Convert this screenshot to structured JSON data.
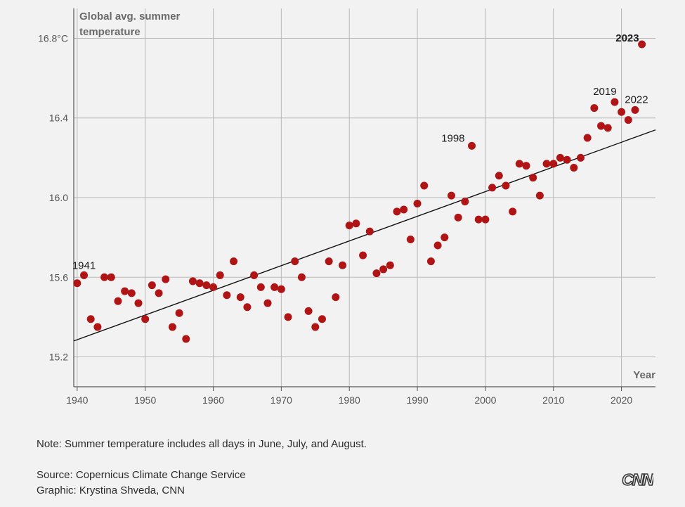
{
  "chart_data": {
    "type": "scatter",
    "title": "Global avg. summer temperature",
    "title_lines": [
      "Global avg. summer",
      "temperature"
    ],
    "xlabel": "Year",
    "ylabel": "",
    "unit_suffix": "°C",
    "xlim": [
      1939.5,
      2025
    ],
    "ylim": [
      15.05,
      16.95
    ],
    "x_ticks": [
      1940,
      1950,
      1960,
      1970,
      1980,
      1990,
      2000,
      2010,
      2020
    ],
    "y_ticks": [
      15.2,
      15.6,
      16.0,
      16.4,
      16.8
    ],
    "y_tick_labels": [
      "15.2",
      "15.6",
      "16.0",
      "16.4",
      "16.8°C"
    ],
    "grid": true,
    "point_color": "#b01414",
    "trend_line": {
      "x": [
        1939.5,
        2025
      ],
      "y": [
        15.28,
        16.34
      ]
    },
    "annotations": [
      {
        "label": "1941",
        "x": 1941,
        "bold": false
      },
      {
        "label": "1998",
        "x": 1998,
        "bold": false
      },
      {
        "label": "2019",
        "x": 2019,
        "bold": false
      },
      {
        "label": "2022",
        "x": 2022,
        "bold": false
      },
      {
        "label": "2023",
        "x": 2023,
        "bold": true
      }
    ],
    "series": [
      {
        "points": [
          [
            1940,
            15.57
          ],
          [
            1941,
            15.61
          ],
          [
            1942,
            15.39
          ],
          [
            1943,
            15.35
          ],
          [
            1944,
            15.6
          ],
          [
            1945,
            15.6
          ],
          [
            1946,
            15.48
          ],
          [
            1947,
            15.53
          ],
          [
            1948,
            15.52
          ],
          [
            1949,
            15.47
          ],
          [
            1950,
            15.39
          ],
          [
            1951,
            15.56
          ],
          [
            1952,
            15.52
          ],
          [
            1953,
            15.59
          ],
          [
            1954,
            15.35
          ],
          [
            1955,
            15.42
          ],
          [
            1956,
            15.29
          ],
          [
            1957,
            15.58
          ],
          [
            1958,
            15.57
          ],
          [
            1959,
            15.56
          ],
          [
            1960,
            15.55
          ],
          [
            1961,
            15.61
          ],
          [
            1962,
            15.51
          ],
          [
            1963,
            15.68
          ],
          [
            1964,
            15.5
          ],
          [
            1965,
            15.45
          ],
          [
            1966,
            15.61
          ],
          [
            1967,
            15.55
          ],
          [
            1968,
            15.47
          ],
          [
            1969,
            15.55
          ],
          [
            1970,
            15.54
          ],
          [
            1971,
            15.4
          ],
          [
            1972,
            15.68
          ],
          [
            1973,
            15.6
          ],
          [
            1974,
            15.43
          ],
          [
            1975,
            15.35
          ],
          [
            1976,
            15.39
          ],
          [
            1977,
            15.68
          ],
          [
            1978,
            15.5
          ],
          [
            1979,
            15.66
          ],
          [
            1980,
            15.86
          ],
          [
            1981,
            15.87
          ],
          [
            1982,
            15.71
          ],
          [
            1983,
            15.83
          ],
          [
            1984,
            15.62
          ],
          [
            1985,
            15.64
          ],
          [
            1986,
            15.66
          ],
          [
            1987,
            15.93
          ],
          [
            1988,
            15.94
          ],
          [
            1989,
            15.79
          ],
          [
            1990,
            15.97
          ],
          [
            1991,
            16.06
          ],
          [
            1992,
            15.68
          ],
          [
            1993,
            15.76
          ],
          [
            1994,
            15.8
          ],
          [
            1995,
            16.01
          ],
          [
            1996,
            15.9
          ],
          [
            1997,
            15.98
          ],
          [
            1998,
            16.26
          ],
          [
            1999,
            15.89
          ],
          [
            2000,
            15.89
          ],
          [
            2001,
            16.05
          ],
          [
            2002,
            16.11
          ],
          [
            2003,
            16.06
          ],
          [
            2004,
            15.93
          ],
          [
            2005,
            16.17
          ],
          [
            2006,
            16.16
          ],
          [
            2007,
            16.1
          ],
          [
            2008,
            16.01
          ],
          [
            2009,
            16.17
          ],
          [
            2010,
            16.17
          ],
          [
            2011,
            16.2
          ],
          [
            2012,
            16.19
          ],
          [
            2013,
            16.15
          ],
          [
            2014,
            16.2
          ],
          [
            2015,
            16.3
          ],
          [
            2016,
            16.45
          ],
          [
            2017,
            16.36
          ],
          [
            2018,
            16.35
          ],
          [
            2019,
            16.48
          ],
          [
            2020,
            16.43
          ],
          [
            2021,
            16.39
          ],
          [
            2022,
            16.44
          ],
          [
            2023,
            16.77
          ]
        ]
      }
    ]
  },
  "footer": {
    "note": "Note: Summer temperature includes all days in June, July, and August.",
    "source": "Source: Copernicus Climate Change Service",
    "graphic": "Graphic: Krystina Shveda, CNN",
    "logo_text": "CNN"
  }
}
